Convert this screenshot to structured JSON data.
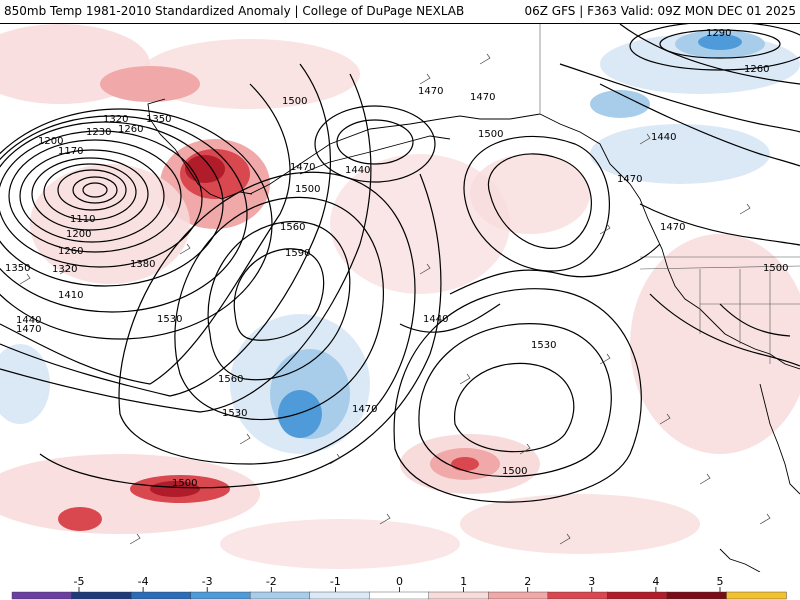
{
  "header": {
    "left_title": "850mb Temp 1981-2010 Standardized Anomaly | College of DuPage NEXLAB",
    "right_title": "06Z GFS | F363 Valid: 09Z MON DEC 01 2025"
  },
  "contour_labels": [
    "1290",
    "1260",
    "1470",
    "1470",
    "1500",
    "1320",
    "1350",
    "1230",
    "1260",
    "1200",
    "1170",
    "1440",
    "1500",
    "1440",
    "1470",
    "1470",
    "1500",
    "1110",
    "1200",
    "1260",
    "1560",
    "1590",
    "1380",
    "1350",
    "1320",
    "1410",
    "1440",
    "1470",
    "1470",
    "1500",
    "1440",
    "1530",
    "1530",
    "1560",
    "1530",
    "1470",
    "1500",
    "1500"
  ],
  "colorbar": {
    "ticks": [
      "-5",
      "-4",
      "-3",
      "-2",
      "-1",
      "0",
      "1",
      "2",
      "3",
      "4",
      "5"
    ],
    "colors": [
      "#6b3fa0",
      "#1f3b7a",
      "#2b6cb8",
      "#4f9bd9",
      "#a8cdeb",
      "#dbe9f6",
      "#ffffff",
      "#f8dcdc",
      "#f0a8a8",
      "#d9474f",
      "#b01c2a",
      "#7a0c18",
      "#f2c12e"
    ]
  }
}
